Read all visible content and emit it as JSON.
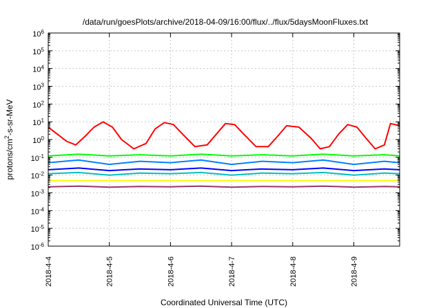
{
  "chart_data": {
    "type": "line",
    "title": "/data/run/goesPlots/archive/2018-04-09/16:00/flux/../flux/5daysMoonFluxes.txt",
    "xlabel": "Coordinated Universal Time (UTC)",
    "ylabel_parts": [
      "protons/cm",
      "2",
      "-s-sr-MeV"
    ],
    "y_scale": "log",
    "ylim_exponents": [
      -6,
      6
    ],
    "xlim_days": [
      0,
      5.75
    ],
    "grid": true,
    "x_ticks": [
      {
        "day": 0,
        "label": "2018-4-4"
      },
      {
        "day": 1,
        "label": "2018-4-5"
      },
      {
        "day": 2,
        "label": "2018-4-6"
      },
      {
        "day": 3,
        "label": "2018-4-7"
      },
      {
        "day": 4,
        "label": "2018-4-8"
      },
      {
        "day": 5,
        "label": "2018-4-9"
      }
    ],
    "y_ticks": [
      {
        "exp": 6,
        "base": "10",
        "power": "6"
      },
      {
        "exp": 5,
        "base": "10",
        "power": "5"
      },
      {
        "exp": 4,
        "base": "10",
        "power": "4"
      },
      {
        "exp": 3,
        "base": "10",
        "power": "3"
      },
      {
        "exp": 2,
        "base": "10",
        "power": "2"
      },
      {
        "exp": 1,
        "base": "10",
        "power": "1"
      },
      {
        "exp": 0,
        "base": "10",
        "power": "0"
      },
      {
        "exp": -1,
        "base": "10",
        "power": "-1"
      },
      {
        "exp": -2,
        "base": "10",
        "power": "-2"
      },
      {
        "exp": -3,
        "base": "10",
        "power": "-3"
      },
      {
        "exp": -4,
        "base": "10",
        "power": "-4"
      },
      {
        "exp": -5,
        "base": "10",
        "power": "-5"
      },
      {
        "exp": -6,
        "base": "10",
        "power": "-6"
      }
    ],
    "series": [
      {
        "color": "#ff0000",
        "x": [
          0,
          0.15,
          0.3,
          0.45,
          0.6,
          0.75,
          0.9,
          1.05,
          1.2,
          1.4,
          1.6,
          1.75,
          1.9,
          2.05,
          2.2,
          2.4,
          2.6,
          2.75,
          2.9,
          3.05,
          3.2,
          3.4,
          3.6,
          3.75,
          3.9,
          4.1,
          4.3,
          4.45,
          4.6,
          4.75,
          4.9,
          5.05,
          5.2,
          5.35,
          5.5,
          5.6,
          5.75
        ],
        "y": [
          5,
          2,
          0.8,
          0.5,
          1.5,
          5,
          10,
          5,
          1,
          0.3,
          0.6,
          4,
          9,
          7,
          2,
          0.4,
          0.5,
          2,
          8,
          7,
          2,
          0.4,
          0.4,
          1.5,
          6,
          5,
          1.2,
          0.3,
          0.4,
          2,
          7,
          5,
          1.2,
          0.3,
          0.5,
          8,
          6
        ]
      },
      {
        "color": "#00ff00",
        "x": [
          0,
          0.5,
          1,
          1.5,
          2,
          2.5,
          3,
          3.5,
          4,
          4.5,
          5,
          5.5,
          5.75
        ],
        "y": [
          0.12,
          0.15,
          0.12,
          0.14,
          0.12,
          0.15,
          0.12,
          0.14,
          0.12,
          0.15,
          0.12,
          0.14,
          0.12
        ]
      },
      {
        "color": "#0080ff",
        "x": [
          0,
          0.5,
          1,
          1.5,
          2,
          2.5,
          3,
          3.5,
          4,
          4.5,
          5,
          5.5,
          5.75
        ],
        "y": [
          0.05,
          0.07,
          0.04,
          0.06,
          0.05,
          0.07,
          0.04,
          0.06,
          0.05,
          0.07,
          0.04,
          0.06,
          0.05
        ]
      },
      {
        "color": "#0000ff",
        "x": [
          0,
          0.5,
          1,
          1.5,
          2,
          2.5,
          3,
          3.5,
          4,
          4.5,
          5,
          5.5,
          5.75
        ],
        "y": [
          0.02,
          0.025,
          0.018,
          0.022,
          0.02,
          0.025,
          0.018,
          0.022,
          0.02,
          0.025,
          0.018,
          0.022,
          0.02
        ]
      },
      {
        "color": "#00c0c0",
        "x": [
          0,
          0.5,
          1,
          1.5,
          2,
          2.5,
          3,
          3.5,
          4,
          4.5,
          5,
          5.5,
          5.75
        ],
        "y": [
          0.012,
          0.014,
          0.01,
          0.013,
          0.012,
          0.014,
          0.01,
          0.013,
          0.012,
          0.014,
          0.01,
          0.013,
          0.012
        ]
      },
      {
        "color": "#ffff00",
        "x": [
          0,
          0.5,
          1,
          1.5,
          2,
          2.5,
          3,
          3.5,
          4,
          4.5,
          5,
          5.5,
          5.75
        ],
        "y": [
          0.005,
          0.005,
          0.005,
          0.005,
          0.005,
          0.005,
          0.005,
          0.005,
          0.005,
          0.005,
          0.005,
          0.005,
          0.005
        ]
      },
      {
        "color": "#993366",
        "x": [
          0,
          0.5,
          1,
          1.5,
          2,
          2.5,
          3,
          3.5,
          4,
          4.5,
          5,
          5.5,
          5.75
        ],
        "y": [
          0.0022,
          0.0024,
          0.0021,
          0.0023,
          0.0022,
          0.0024,
          0.0021,
          0.0023,
          0.0022,
          0.0024,
          0.0021,
          0.0023,
          0.0022
        ]
      }
    ]
  }
}
